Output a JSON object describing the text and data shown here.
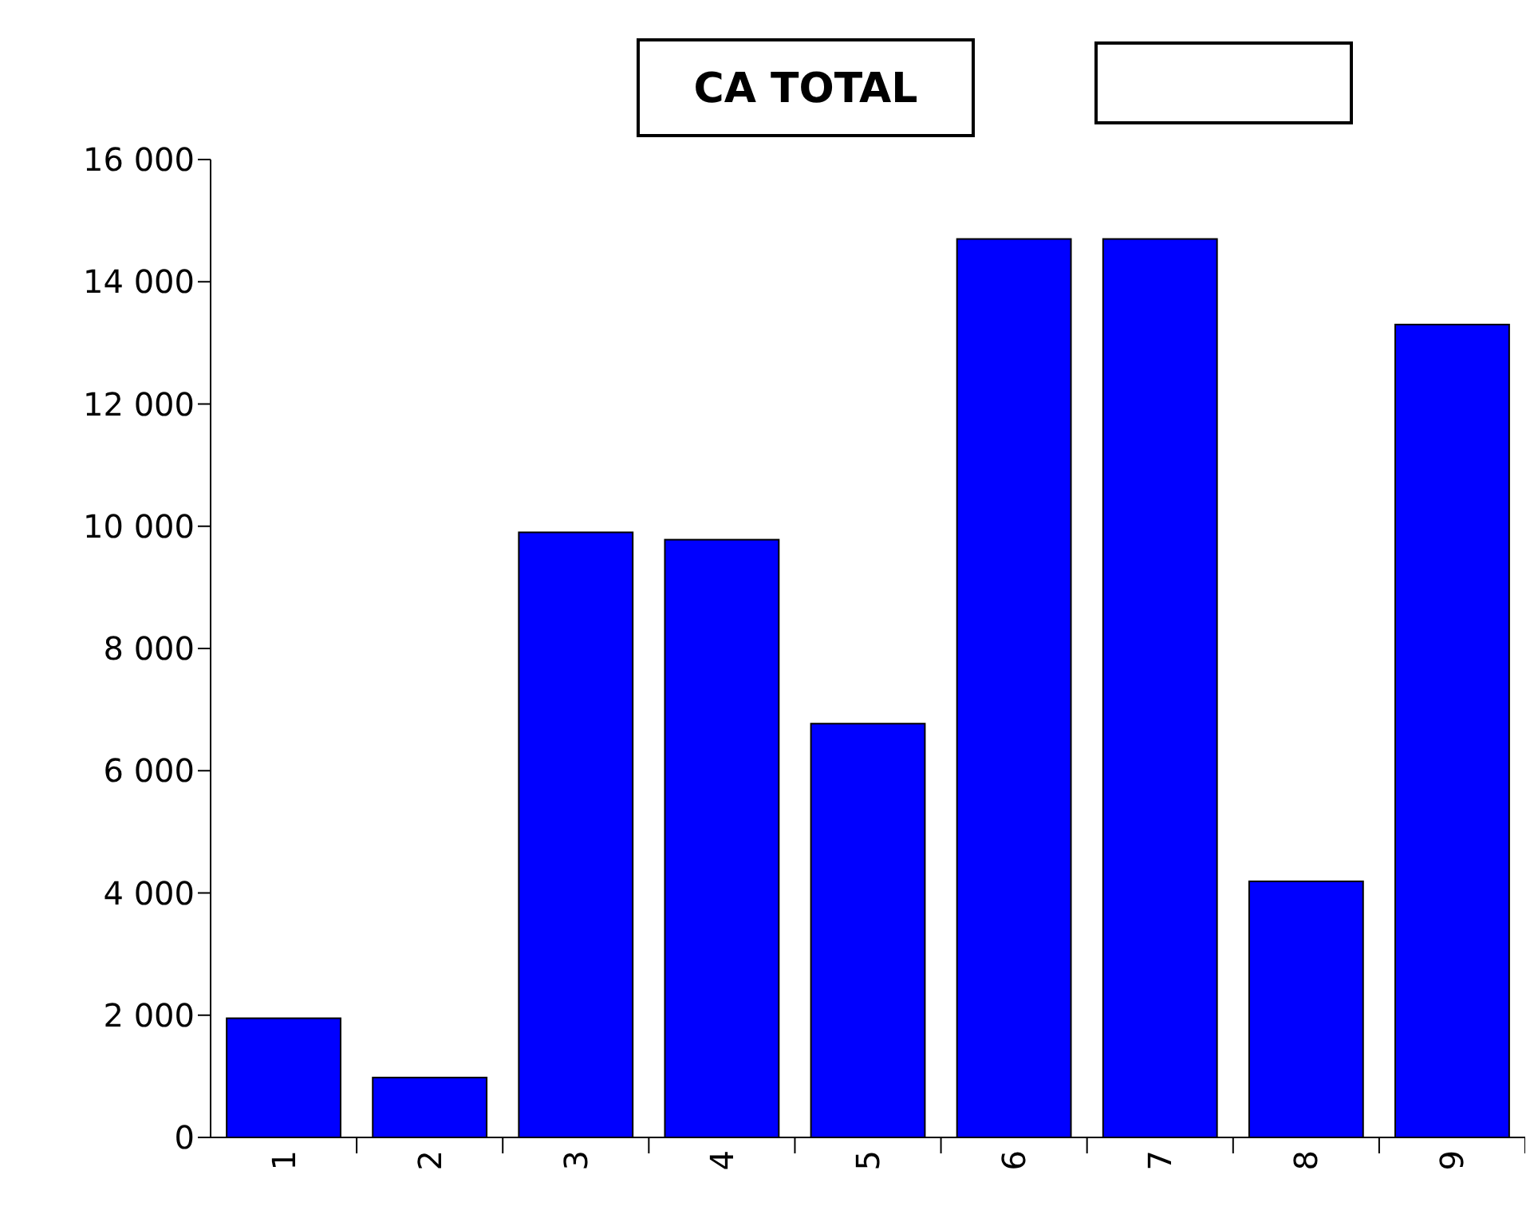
{
  "chart_data": {
    "type": "bar",
    "title": "CA TOTAL",
    "categories": [
      "1",
      "2",
      "3",
      "4",
      "5",
      "6",
      "7",
      "8",
      "9"
    ],
    "values": [
      1950,
      980,
      9900,
      9780,
      6770,
      14700,
      14700,
      4190,
      13300
    ],
    "color": "#0000ff",
    "ylim": [
      0,
      16000
    ],
    "yticks": [
      0,
      {
        "value": 2000,
        "label": "2 000"
      },
      {
        "value": 4000,
        "label": "4 000"
      },
      {
        "value": 6000,
        "label": "6 000"
      },
      {
        "value": 8000,
        "label": "8 000"
      },
      {
        "value": 10000,
        "label": "10 000"
      },
      {
        "value": 12000,
        "label": "12 000"
      },
      {
        "value": 14000,
        "label": "14 000"
      },
      {
        "value": 16000,
        "label": "16 000"
      }
    ],
    "grid": false
  }
}
